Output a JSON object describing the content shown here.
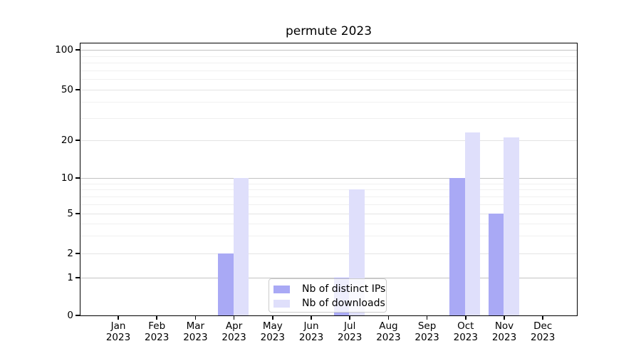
{
  "chart_data": {
    "type": "bar",
    "title": "permute 2023",
    "year_label": "2023",
    "categories": [
      "Jan",
      "Feb",
      "Mar",
      "Apr",
      "May",
      "Jun",
      "Jul",
      "Aug",
      "Sep",
      "Oct",
      "Nov",
      "Dec"
    ],
    "series": [
      {
        "name": "Nb of distinct IPs",
        "color": "#a9a9f5",
        "values": [
          0,
          0,
          0,
          2,
          0,
          0,
          1,
          0,
          0,
          10,
          5,
          0
        ]
      },
      {
        "name": "Nb of downloads",
        "color": "#dfdffb",
        "values": [
          0,
          0,
          0,
          10,
          0,
          0,
          8,
          0,
          0,
          23,
          21,
          0
        ]
      }
    ],
    "yscale": "symlog",
    "yticks": [
      0,
      1,
      2,
      5,
      10,
      20,
      50,
      100
    ],
    "ylim": [
      0,
      110
    ],
    "xlabel": "",
    "ylabel": "",
    "grid": true,
    "legend_position": "lower center",
    "colors": {
      "grid_major": "#c3c3c3",
      "grid_minor": "#f0f0f0",
      "axis_frame": "#000000",
      "text": "#000000"
    }
  }
}
